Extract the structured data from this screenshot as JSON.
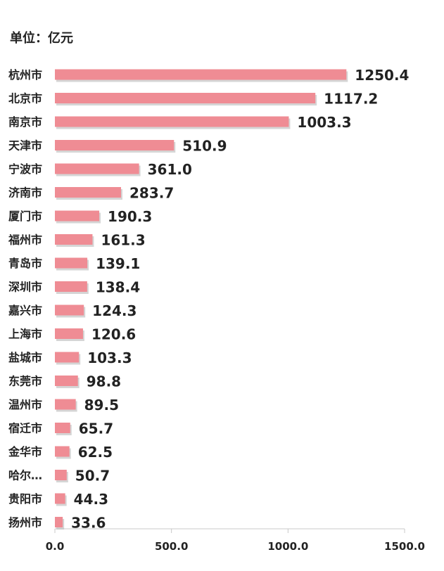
{
  "unit_label": "单位：亿元",
  "colors": {
    "bar": "#EF8C94",
    "bar_shadow": "#B9B9B9",
    "text": "#222222",
    "axis": "#C8C8C8"
  },
  "chart_data": {
    "type": "bar",
    "orientation": "horizontal",
    "categories": [
      "杭州市",
      "北京市",
      "南京市",
      "天津市",
      "宁波市",
      "济南市",
      "厦门市",
      "福州市",
      "青岛市",
      "深圳市",
      "嘉兴市",
      "上海市",
      "盐城市",
      "东莞市",
      "温州市",
      "宿迁市",
      "金华市",
      "哈尔…",
      "贵阳市",
      "扬州市"
    ],
    "values": [
      1250.4,
      1117.2,
      1003.3,
      510.9,
      361.0,
      283.7,
      190.3,
      161.3,
      139.1,
      138.4,
      124.3,
      120.6,
      103.3,
      98.8,
      89.5,
      65.7,
      62.5,
      50.7,
      44.3,
      33.6
    ],
    "value_labels": [
      "1250.4",
      "1117.2",
      "1003.3",
      "510.9",
      "361.0",
      "283.7",
      "190.3",
      "161.3",
      "139.1",
      "138.4",
      "124.3",
      "120.6",
      "103.3",
      "98.8",
      "89.5",
      "65.7",
      "62.5",
      "50.7",
      "44.3",
      "33.6"
    ],
    "xlim": [
      0,
      1500
    ],
    "x_ticks": [
      0,
      500,
      1000,
      1500
    ],
    "x_tick_labels": [
      "0.0",
      "500.0",
      "1000.0",
      "1500.0"
    ],
    "grid": false,
    "legend": "none"
  }
}
